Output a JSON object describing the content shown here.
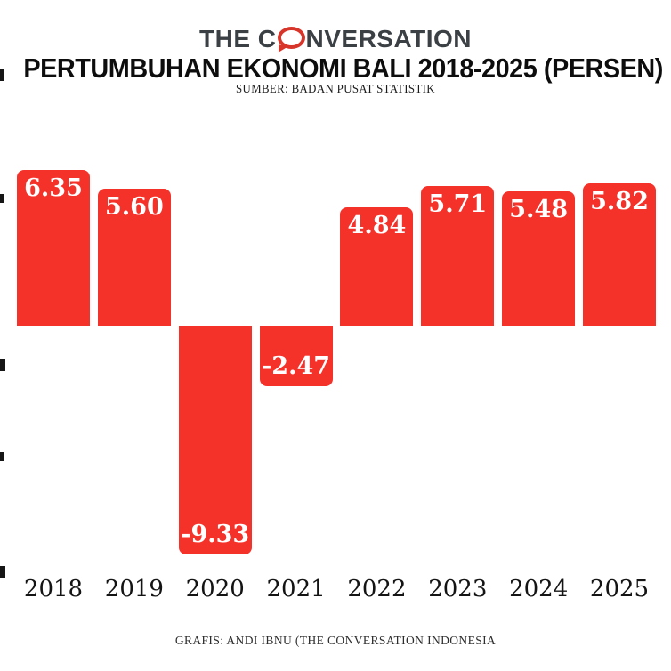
{
  "logo": {
    "part1": "THE C",
    "part2": "NVERSATION",
    "bubble_icon": "speech-bubble-o",
    "text_color": "#3b4045",
    "bubble_color": "#d8352a"
  },
  "title": "PERTUMBUHAN EKONOMI BALI 2018-2025 (PERSEN)",
  "source": "SUMBER: BADAN PUSAT STATISTIK",
  "footer": "GRAFIS: ANDI IBNU (THE CONVERSATION INDONESIA",
  "chart_data": {
    "type": "bar",
    "title": "Pertumbuhan Ekonomi Bali 2018-2025 (Persen)",
    "categories": [
      "2018",
      "2019",
      "2020",
      "2021",
      "2022",
      "2023",
      "2024",
      "2025"
    ],
    "values": [
      6.35,
      5.6,
      -9.33,
      -2.47,
      4.84,
      5.71,
      5.48,
      5.82
    ],
    "data_labels": [
      "6.35",
      "5.60",
      "-9.33",
      "-2.47",
      "4.84",
      "5.71",
      "5.48",
      "5.82"
    ],
    "bar_color": "#f4322a",
    "label_color": "#ffffff",
    "xlabel": "",
    "ylabel": "",
    "ylim": [
      -10.5,
      7.5
    ],
    "baseline": 0,
    "grid": false,
    "legend": false,
    "label_position": "inside-end"
  }
}
